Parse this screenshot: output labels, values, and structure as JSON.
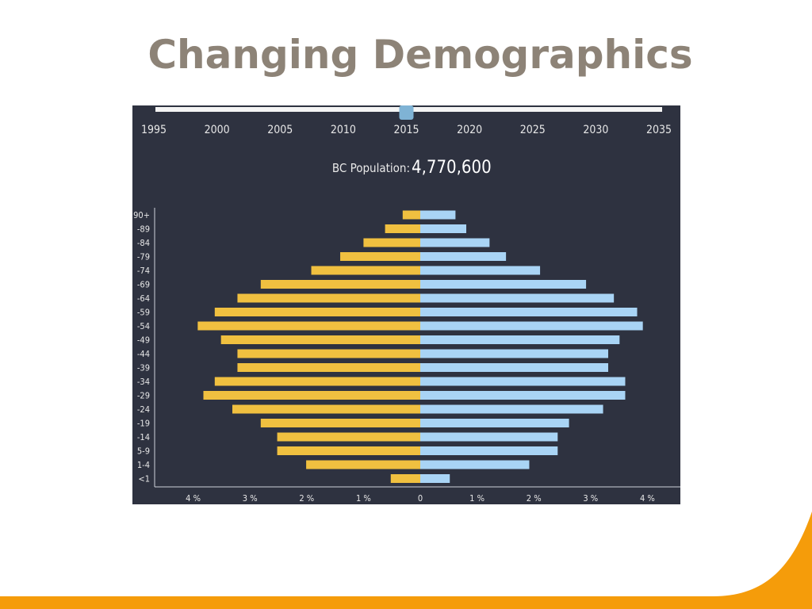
{
  "slide": {
    "title": "Changing Demographics"
  },
  "colors": {
    "panel": "#2e3240",
    "female": "#f0c040",
    "male": "#a9d4f5",
    "accent": "#f59c0a",
    "title": "#8d8377",
    "slider_handle": "#7fb3d5"
  },
  "slider": {
    "years": [
      "1995",
      "2000",
      "2005",
      "2010",
      "2015",
      "2020",
      "2025",
      "2030",
      "2035"
    ],
    "selected": "2015"
  },
  "population": {
    "label": "BC Population:",
    "value": "4,770,600"
  },
  "chart_data": {
    "type": "bar",
    "orientation": "horizontal-pyramid",
    "categories": [
      "90+",
      "-89",
      "-84",
      "-79",
      "-74",
      "-69",
      "-64",
      "-59",
      "-54",
      "-49",
      "-44",
      "-39",
      "-34",
      "-29",
      "-24",
      "-19",
      "-14",
      "5-9",
      "1-4",
      "<1"
    ],
    "series": [
      {
        "side": "left",
        "color": "#f0c040",
        "values": [
          0.31,
          0.62,
          1.0,
          1.41,
          1.92,
          2.81,
          3.22,
          3.62,
          3.92,
          3.51,
          3.22,
          3.22,
          3.62,
          3.82,
          3.31,
          2.81,
          2.52,
          2.52,
          2.01,
          0.52
        ]
      },
      {
        "side": "right",
        "color": "#a9d4f5",
        "values": [
          0.62,
          0.81,
          1.22,
          1.51,
          2.11,
          2.92,
          3.41,
          3.82,
          3.92,
          3.51,
          3.31,
          3.31,
          3.61,
          3.61,
          3.22,
          2.62,
          2.42,
          2.42,
          1.92,
          0.52
        ]
      }
    ],
    "x_ticks": [
      "4 %",
      "3 %",
      "2 %",
      "1 %",
      "0",
      "1 %",
      "2 %",
      "3 %",
      "4 %"
    ],
    "xlim": [
      -4.6,
      4.6
    ],
    "unit": "%",
    "grid": false
  }
}
